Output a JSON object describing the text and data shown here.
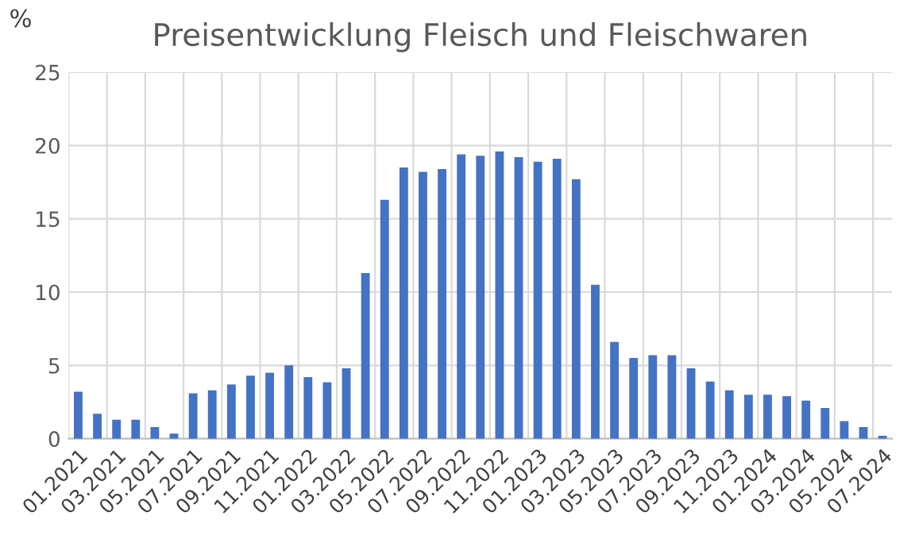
{
  "chart_data": {
    "type": "bar",
    "title": "Preisentwicklung Fleisch und Fleischwaren",
    "ylabel": "%",
    "categories": [
      "01.2021",
      null,
      "03.2021",
      null,
      "05.2021",
      null,
      "07.2021",
      null,
      "09.2021",
      null,
      "11.2021",
      null,
      "01.2022",
      null,
      "03.2022",
      null,
      "05.2022",
      null,
      "07.2022",
      null,
      "09.2022",
      null,
      "11.2022",
      null,
      "01.2023",
      null,
      "03.2023",
      null,
      "05.2023",
      null,
      "07.2023",
      null,
      "09.2023",
      null,
      "11.2023",
      null,
      "01.2024",
      null,
      "03.2024",
      null,
      "05.2024",
      null,
      "07.2024"
    ],
    "values": [
      3.2,
      1.7,
      1.3,
      1.3,
      0.8,
      0.35,
      3.1,
      3.3,
      3.7,
      4.3,
      4.5,
      5.0,
      4.2,
      3.85,
      4.8,
      11.3,
      16.3,
      18.5,
      18.2,
      18.4,
      19.4,
      19.3,
      19.6,
      19.2,
      18.9,
      19.1,
      17.7,
      10.5,
      6.6,
      5.5,
      5.7,
      5.7,
      4.8,
      3.9,
      3.3,
      3.0,
      3.0,
      2.9,
      2.6,
      2.1,
      1.2,
      0.8,
      0.2
    ],
    "color": "#4472c4",
    "ylim": [
      0,
      25
    ],
    "yticks": [
      0,
      5,
      10,
      15,
      20,
      25
    ],
    "grid": true,
    "legend": false
  }
}
